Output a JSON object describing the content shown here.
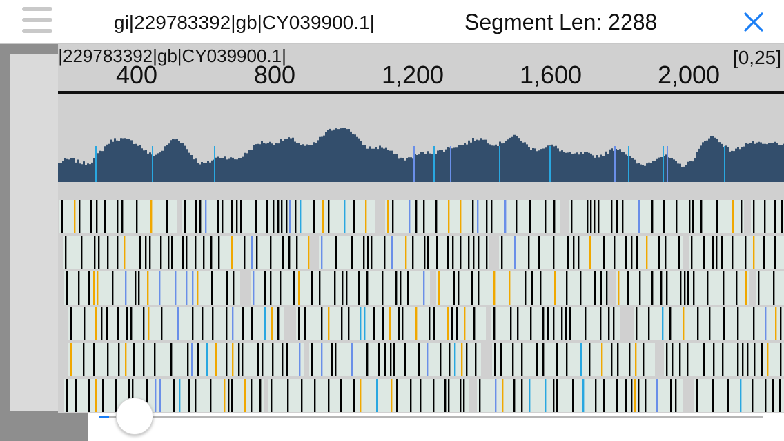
{
  "header": {
    "sequence_title": "gi|229783392|gb|CY039900.1|",
    "segment_label": "Segment Len: 2288",
    "menu_icon": "hamburger-menu-icon",
    "close_icon": "close-x-icon"
  },
  "viewer": {
    "track_name": "gi|229783392|gb|CY039900.1|",
    "ruler_ticks": [
      "400",
      "800",
      "1,200",
      "1,600",
      "2,000"
    ],
    "coverage_range": "[0,25]",
    "coverage_color": "#334e6c",
    "read_color": "#dde8e3",
    "mismatch_colors": [
      "#000000",
      "#f0a800",
      "#6a8fe8",
      "#29a7e0"
    ]
  },
  "slider": {
    "value": 0.01,
    "color": "#1a7ef5"
  }
}
